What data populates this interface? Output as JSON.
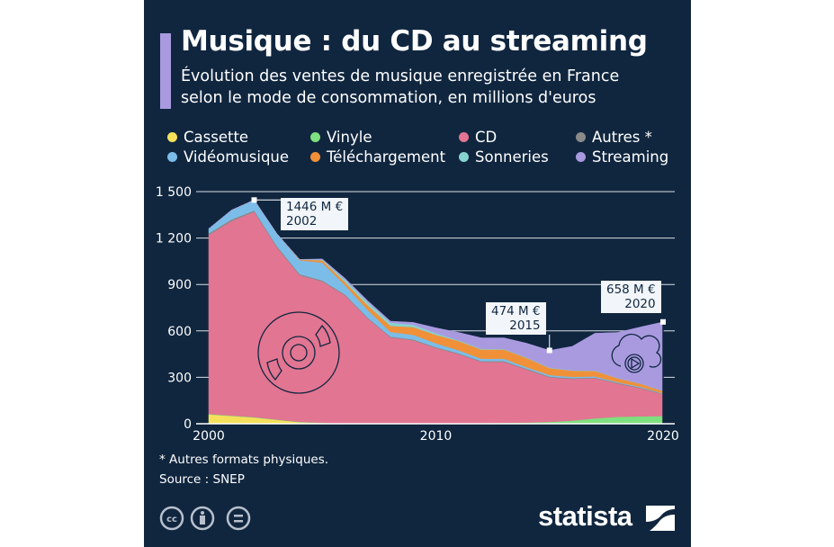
{
  "header": {
    "title": "Musique : du CD au streaming",
    "subtitle_line1": "Évolution des ventes de musique enregistrée en France",
    "subtitle_line2": "selon le mode de consommation, en millions d'euros",
    "accent_color": "#a99ae0"
  },
  "legend": [
    {
      "label": "Cassette",
      "color": "#f4e05a"
    },
    {
      "label": "Vinyle",
      "color": "#7fe07f"
    },
    {
      "label": "CD",
      "color": "#e27592"
    },
    {
      "label": "Autres *",
      "color": "#8a8a8a"
    },
    {
      "label": "Vidéomusique",
      "color": "#7bbde8"
    },
    {
      "label": "Téléchargement",
      "color": "#f0913a"
    },
    {
      "label": "Sonneries",
      "color": "#86d4cf"
    },
    {
      "label": "Streaming",
      "color": "#a99ae0"
    }
  ],
  "chart_data": {
    "type": "area",
    "stacked": true,
    "x": [
      2000,
      2001,
      2002,
      2003,
      2004,
      2005,
      2006,
      2007,
      2008,
      2009,
      2010,
      2011,
      2012,
      2013,
      2014,
      2015,
      2016,
      2017,
      2018,
      2019,
      2020
    ],
    "series": [
      {
        "name": "Cassette",
        "color": "#f4e05a",
        "values": [
          60,
          50,
          40,
          25,
          10,
          5,
          0,
          0,
          0,
          0,
          0,
          0,
          0,
          0,
          0,
          0,
          0,
          0,
          0,
          0,
          0
        ]
      },
      {
        "name": "Vinyle",
        "color": "#7fe07f",
        "values": [
          3,
          3,
          3,
          2,
          2,
          2,
          2,
          2,
          2,
          3,
          3,
          4,
          5,
          6,
          8,
          12,
          20,
          35,
          45,
          48,
          50
        ]
      },
      {
        "name": "CD",
        "color": "#e27592",
        "values": [
          1157,
          1257,
          1327,
          1113,
          948,
          913,
          828,
          678,
          556,
          537,
          487,
          446,
          395,
          394,
          342,
          288,
          270,
          260,
          215,
          182,
          140
        ]
      },
      {
        "name": "Autres *",
        "color": "#8a8a8a",
        "values": [
          10,
          10,
          8,
          8,
          7,
          6,
          5,
          5,
          5,
          5,
          5,
          5,
          5,
          5,
          5,
          5,
          5,
          4,
          4,
          4,
          3
        ]
      },
      {
        "name": "Vidéomusique",
        "color": "#7bbde8",
        "values": [
          30,
          60,
          68,
          80,
          90,
          115,
          60,
          50,
          30,
          30,
          25,
          20,
          15,
          15,
          10,
          10,
          8,
          7,
          5,
          5,
          3
        ]
      },
      {
        "name": "Téléchargement",
        "color": "#f0913a",
        "values": [
          0,
          0,
          0,
          0,
          5,
          15,
          20,
          30,
          40,
          50,
          55,
          60,
          60,
          60,
          60,
          45,
          40,
          35,
          25,
          20,
          15
        ]
      },
      {
        "name": "Sonneries",
        "color": "#86d4cf",
        "values": [
          0,
          0,
          0,
          0,
          0,
          5,
          15,
          20,
          20,
          15,
          10,
          5,
          5,
          3,
          3,
          3,
          2,
          2,
          1,
          1,
          1
        ]
      },
      {
        "name": "Streaming",
        "color": "#a99ae0",
        "values": [
          0,
          0,
          0,
          0,
          0,
          4,
          10,
          10,
          10,
          15,
          35,
          50,
          70,
          72,
          92,
          111,
          155,
          242,
          295,
          365,
          446
        ]
      }
    ],
    "ylim": [
      0,
      1500
    ],
    "y_ticks": [
      "0",
      "300",
      "600",
      "900",
      "1 200",
      "1 500"
    ],
    "y_tick_values": [
      0,
      300,
      600,
      900,
      1200,
      1500
    ],
    "x_ticks": [
      "2000",
      "2010",
      "2020"
    ],
    "x_tick_values": [
      2000,
      2010,
      2020
    ],
    "grid": true,
    "annotations": [
      {
        "year": 2002,
        "value": 1446,
        "label": "1446 M €",
        "year_label": "2002"
      },
      {
        "year": 2015,
        "value": 474,
        "label": "474 M €",
        "year_label": "2015"
      },
      {
        "year": 2020,
        "value": 658,
        "label": "658 M €",
        "year_label": "2020"
      }
    ]
  },
  "footer": {
    "note": "* Autres formats physiques.",
    "source": "Source : SNEP",
    "brand": "statista"
  }
}
